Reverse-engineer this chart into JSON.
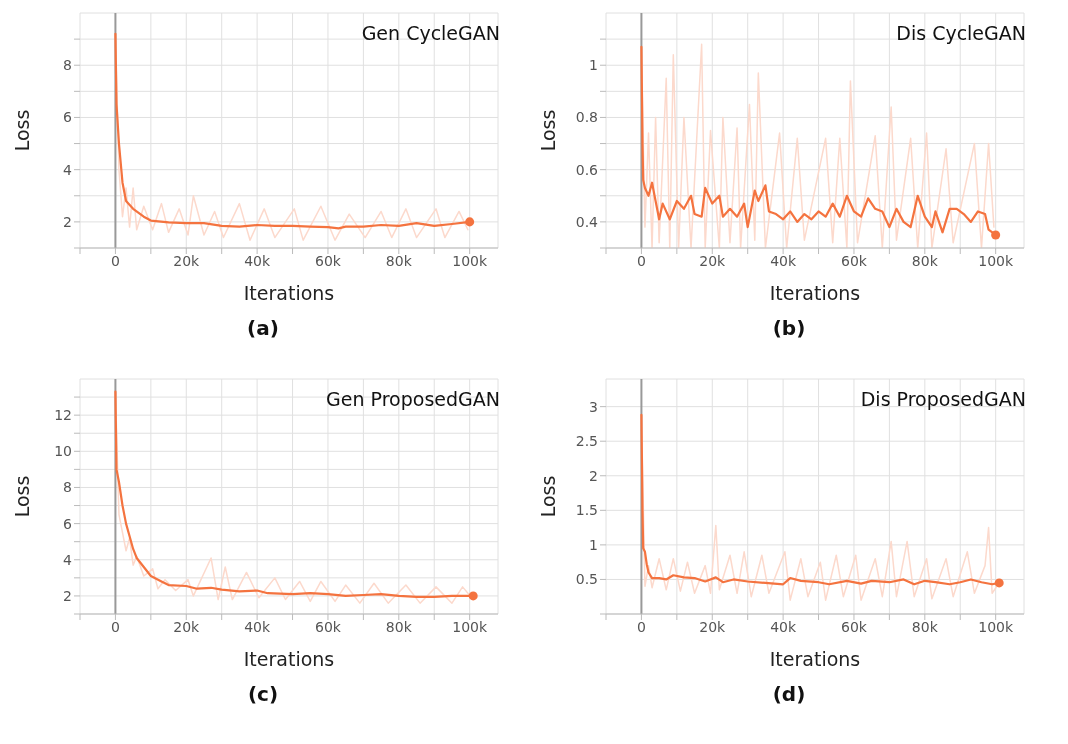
{
  "chart_data": [
    {
      "type": "line",
      "title": "Gen CycleGAN",
      "xlabel": "Iterations",
      "ylabel": "Loss",
      "annotations": [
        "(a)"
      ],
      "grid": true,
      "xlim": [
        -10,
        108
      ],
      "xticks": [
        {
          "value": -10,
          "label": null
        },
        {
          "value": 0,
          "label": "0"
        },
        {
          "value": 10,
          "label": null
        },
        {
          "value": 20,
          "label": "20k"
        },
        {
          "value": 30,
          "label": null
        },
        {
          "value": 40,
          "label": "40k"
        },
        {
          "value": 50,
          "label": null
        },
        {
          "value": 60,
          "label": "60k"
        },
        {
          "value": 70,
          "label": null
        },
        {
          "value": 80,
          "label": "80k"
        },
        {
          "value": 90,
          "label": null
        },
        {
          "value": 100,
          "label": "100k"
        }
      ],
      "ylim": [
        1,
        10
      ],
      "yticks": [
        {
          "value": 1,
          "label": null
        },
        2,
        {
          "value": 3,
          "label": null
        },
        4,
        {
          "value": 5,
          "label": null
        },
        6,
        {
          "value": 7,
          "label": null
        },
        8,
        {
          "value": 9,
          "label": null
        }
      ],
      "ref_lines": [
        {
          "axis": "x",
          "value": 0,
          "color": "#999999"
        }
      ],
      "series": [
        {
          "color": "#fcd9cc",
          "x": [
            0,
            1,
            2,
            3,
            4,
            5,
            6,
            8,
            10.5,
            13,
            15,
            18,
            20.5,
            22,
            25,
            28,
            30.5,
            35,
            38,
            42,
            45,
            50.5,
            53,
            58,
            62,
            66,
            70.5,
            75,
            78,
            82,
            85,
            90.5,
            93,
            97,
            99.5
          ],
          "values": [
            9.2,
            4,
            2.2,
            3.3,
            1.8,
            3.3,
            1.7,
            2.6,
            1.7,
            2.7,
            1.6,
            2.5,
            1.5,
            3.0,
            1.5,
            2.4,
            1.4,
            2.7,
            1.3,
            2.5,
            1.4,
            2.5,
            1.3,
            2.6,
            1.3,
            2.3,
            1.4,
            2.4,
            1.4,
            2.5,
            1.4,
            2.5,
            1.4,
            2.4,
            1.7
          ]
        },
        {
          "color": "#f4733f",
          "x": [
            0,
            0.3,
            1,
            2,
            3,
            5,
            8,
            10,
            15,
            20,
            25,
            30,
            35,
            40,
            45,
            50,
            55,
            60,
            63,
            65,
            70,
            75,
            80,
            85,
            90,
            95,
            100
          ],
          "values": [
            9.2,
            6.5,
            5,
            3.5,
            2.8,
            2.5,
            2.2,
            2.05,
            1.98,
            1.95,
            1.95,
            1.85,
            1.82,
            1.88,
            1.85,
            1.85,
            1.82,
            1.8,
            1.75,
            1.82,
            1.82,
            1.88,
            1.85,
            1.95,
            1.85,
            1.92,
            2.0
          ]
        },
        {
          "type": "scatter",
          "marker": "circle",
          "color": "#f4733f",
          "x": [
            100
          ],
          "values": [
            2.0
          ]
        }
      ]
    },
    {
      "type": "line",
      "title": "Dis CycleGAN",
      "xlabel": "Iterations",
      "ylabel": "Loss",
      "annotations": [
        "(b)"
      ],
      "grid": true,
      "xlim": [
        -10,
        108
      ],
      "xticks": [
        {
          "value": -10,
          "label": null
        },
        {
          "value": 0,
          "label": "0"
        },
        {
          "value": 10,
          "label": null
        },
        {
          "value": 20,
          "label": "20k"
        },
        {
          "value": 30,
          "label": null
        },
        {
          "value": 40,
          "label": "40k"
        },
        {
          "value": 50,
          "label": null
        },
        {
          "value": 60,
          "label": "60k"
        },
        {
          "value": 70,
          "label": null
        },
        {
          "value": 80,
          "label": "80k"
        },
        {
          "value": 90,
          "label": null
        },
        {
          "value": 100,
          "label": "100k"
        }
      ],
      "ylim": [
        0.3,
        1.2
      ],
      "yticks": [
        {
          "value": 0.3,
          "label": null
        },
        0.4,
        {
          "value": 0.5,
          "label": null
        },
        0.6,
        {
          "value": 0.7,
          "label": null
        },
        0.8,
        {
          "value": 0.9,
          "label": null
        },
        1,
        {
          "value": 1.1,
          "label": null
        }
      ],
      "ref_lines": [
        {
          "axis": "x",
          "value": 0,
          "color": "#999999"
        }
      ],
      "series": [
        {
          "color": "#fcd9cc",
          "x": [
            0,
            1,
            2,
            3,
            4,
            5,
            7,
            8,
            9,
            10.5,
            12,
            14,
            17,
            18,
            19.5,
            22,
            23,
            25,
            27,
            28,
            30.5,
            32,
            33,
            35,
            39,
            41,
            44,
            46,
            52,
            54,
            56,
            58,
            59,
            61,
            66,
            68,
            70.5,
            72,
            76,
            78,
            80.5,
            82,
            86,
            88,
            94,
            96,
            98,
            99.5
          ],
          "values": [
            1.07,
            0.38,
            0.74,
            0.3,
            0.8,
            0.32,
            0.95,
            0.3,
            1.04,
            0.3,
            0.8,
            0.3,
            1.08,
            0.3,
            0.75,
            0.3,
            0.8,
            0.32,
            0.76,
            0.3,
            0.85,
            0.33,
            0.97,
            0.3,
            0.74,
            0.3,
            0.72,
            0.33,
            0.72,
            0.32,
            0.72,
            0.3,
            0.94,
            0.32,
            0.73,
            0.3,
            0.84,
            0.33,
            0.72,
            0.3,
            0.74,
            0.3,
            0.68,
            0.32,
            0.7,
            0.3,
            0.7,
            0.38
          ]
        },
        {
          "color": "#f4733f",
          "x": [
            0,
            0.3,
            0.5,
            1,
            2,
            3,
            4,
            5,
            6,
            8,
            10,
            12,
            14,
            15,
            17,
            18,
            20,
            22,
            23,
            25,
            27,
            29,
            30,
            32,
            33,
            35,
            36,
            38,
            40,
            42,
            44,
            46,
            48,
            50,
            52,
            54,
            56,
            58,
            60,
            62,
            64,
            66,
            68,
            70,
            72,
            74,
            76,
            78,
            80,
            82,
            83,
            85,
            87,
            89,
            91,
            93,
            95,
            97,
            98,
            100
          ],
          "values": [
            1.07,
            0.7,
            0.56,
            0.53,
            0.5,
            0.55,
            0.48,
            0.41,
            0.47,
            0.41,
            0.48,
            0.45,
            0.5,
            0.43,
            0.42,
            0.53,
            0.47,
            0.5,
            0.42,
            0.45,
            0.42,
            0.47,
            0.38,
            0.52,
            0.48,
            0.54,
            0.44,
            0.43,
            0.41,
            0.44,
            0.4,
            0.43,
            0.41,
            0.44,
            0.42,
            0.47,
            0.42,
            0.5,
            0.44,
            0.42,
            0.49,
            0.45,
            0.44,
            0.38,
            0.45,
            0.4,
            0.38,
            0.5,
            0.42,
            0.38,
            0.44,
            0.36,
            0.45,
            0.45,
            0.43,
            0.4,
            0.44,
            0.43,
            0.37,
            0.35
          ]
        },
        {
          "type": "scatter",
          "marker": "circle",
          "color": "#f4733f",
          "x": [
            100
          ],
          "values": [
            0.35
          ]
        }
      ]
    },
    {
      "type": "line",
      "title": "Gen ProposedGAN",
      "xlabel": "Iterations",
      "ylabel": "Loss",
      "annotations": [
        "(c)"
      ],
      "grid": true,
      "xlim": [
        -10,
        108
      ],
      "xticks": [
        {
          "value": -10,
          "label": null
        },
        {
          "value": 0,
          "label": "0"
        },
        {
          "value": 10,
          "label": null
        },
        {
          "value": 20,
          "label": "20k"
        },
        {
          "value": 30,
          "label": null
        },
        {
          "value": 40,
          "label": "40k"
        },
        {
          "value": 50,
          "label": null
        },
        {
          "value": 60,
          "label": "60k"
        },
        {
          "value": 70,
          "label": null
        },
        {
          "value": 80,
          "label": "80k"
        },
        {
          "value": 90,
          "label": null
        },
        {
          "value": 100,
          "label": "100k"
        }
      ],
      "ylim": [
        1,
        14
      ],
      "yticks": [
        {
          "value": 1,
          "label": null
        },
        2,
        {
          "value": 3,
          "label": null
        },
        4,
        {
          "value": 5,
          "label": null
        },
        6,
        {
          "value": 7,
          "label": null
        },
        8,
        {
          "value": 9,
          "label": null
        },
        10,
        {
          "value": 11,
          "label": null
        },
        12,
        {
          "value": 13,
          "label": null
        }
      ],
      "ref_lines": [
        {
          "axis": "x",
          "value": 0,
          "color": "#999999"
        }
      ],
      "series": [
        {
          "color": "#fcd9cc",
          "x": [
            0,
            1,
            2,
            3,
            4,
            5,
            6,
            8,
            10.5,
            12,
            14,
            17,
            20.5,
            22,
            27,
            29,
            31,
            33,
            37,
            40.5,
            45,
            48,
            52,
            55,
            58,
            62,
            65,
            69,
            73,
            77,
            82,
            86,
            90.5,
            95,
            98,
            101
          ],
          "values": [
            13.3,
            6.5,
            5.5,
            4.5,
            5.2,
            3.7,
            4.2,
            3.1,
            3.5,
            2.4,
            2.9,
            2.3,
            2.9,
            2.0,
            4.1,
            1.8,
            3.6,
            1.8,
            3.3,
            1.9,
            3.0,
            1.8,
            2.8,
            1.7,
            2.8,
            1.7,
            2.6,
            1.6,
            2.7,
            1.6,
            2.6,
            1.6,
            2.5,
            1.6,
            2.5,
            1.8
          ]
        },
        {
          "color": "#f4733f",
          "x": [
            0,
            0.3,
            1,
            2,
            3,
            4,
            5,
            6,
            8,
            10,
            13,
            15,
            20,
            23,
            27,
            30,
            35,
            40,
            43,
            50,
            55,
            60,
            65,
            70,
            75,
            80,
            85,
            90,
            95,
            101
          ],
          "values": [
            13.3,
            9,
            8.3,
            7,
            6,
            5.3,
            4.6,
            4.1,
            3.6,
            3.1,
            2.8,
            2.6,
            2.55,
            2.4,
            2.45,
            2.35,
            2.25,
            2.3,
            2.15,
            2.1,
            2.15,
            2.1,
            2.0,
            2.05,
            2.1,
            2.0,
            1.95,
            1.95,
            2.0,
            2.0
          ]
        },
        {
          "type": "scatter",
          "marker": "circle",
          "color": "#f4733f",
          "x": [
            101
          ],
          "values": [
            2.0
          ]
        }
      ]
    },
    {
      "type": "line",
      "title": "Dis ProposedGAN",
      "xlabel": "Iterations",
      "ylabel": "Loss",
      "annotations": [
        "(d)"
      ],
      "grid": true,
      "xlim": [
        -10,
        108
      ],
      "xticks": [
        {
          "value": -10,
          "label": null
        },
        {
          "value": 0,
          "label": "0"
        },
        {
          "value": 10,
          "label": null
        },
        {
          "value": 20,
          "label": "20k"
        },
        {
          "value": 30,
          "label": null
        },
        {
          "value": 40,
          "label": "40k"
        },
        {
          "value": 50,
          "label": null
        },
        {
          "value": 60,
          "label": "60k"
        },
        {
          "value": 70,
          "label": null
        },
        {
          "value": 80,
          "label": "80k"
        },
        {
          "value": 90,
          "label": null
        },
        {
          "value": 100,
          "label": "100k"
        }
      ],
      "ylim": [
        0,
        3.4
      ],
      "yticks": [
        {
          "value": 0,
          "label": null
        },
        0.5,
        1,
        1.5,
        2,
        2.5,
        3
      ],
      "ref_lines": [
        {
          "axis": "x",
          "value": 0,
          "color": "#999999"
        }
      ],
      "series": [
        {
          "color": "#fcd9cc",
          "x": [
            0,
            1,
            2,
            3,
            5,
            7,
            9,
            11,
            13,
            15,
            18,
            19.5,
            21,
            22,
            25,
            27,
            29,
            31,
            34,
            36,
            40.5,
            42,
            45,
            47,
            50.5,
            52,
            55,
            57,
            60.5,
            62,
            66,
            68,
            70.5,
            72,
            75,
            77,
            80.5,
            82,
            86,
            88,
            92,
            94,
            97,
            98,
            99,
            101
          ],
          "values": [
            2.88,
            0.4,
            0.7,
            0.38,
            0.8,
            0.35,
            0.8,
            0.33,
            0.75,
            0.3,
            0.7,
            0.3,
            1.28,
            0.35,
            0.85,
            0.3,
            0.9,
            0.25,
            0.85,
            0.3,
            0.9,
            0.2,
            0.8,
            0.25,
            0.75,
            0.2,
            0.85,
            0.25,
            0.85,
            0.2,
            0.8,
            0.25,
            1.05,
            0.25,
            1.05,
            0.25,
            0.8,
            0.22,
            0.8,
            0.25,
            0.9,
            0.3,
            0.7,
            1.25,
            0.3,
            0.45
          ]
        },
        {
          "color": "#f4733f",
          "x": [
            0,
            0.3,
            0.5,
            1,
            1.5,
            2,
            3,
            5,
            7,
            9,
            12,
            15,
            18,
            21,
            23,
            26,
            30,
            35,
            40,
            42,
            45,
            50,
            53,
            58,
            62,
            65,
            70,
            74,
            77,
            80,
            83,
            87,
            90,
            93,
            96,
            99,
            101
          ],
          "values": [
            2.88,
            1.5,
            0.95,
            0.9,
            0.72,
            0.6,
            0.52,
            0.52,
            0.5,
            0.56,
            0.53,
            0.52,
            0.47,
            0.53,
            0.46,
            0.5,
            0.47,
            0.45,
            0.43,
            0.52,
            0.48,
            0.46,
            0.43,
            0.48,
            0.44,
            0.48,
            0.46,
            0.5,
            0.43,
            0.48,
            0.46,
            0.43,
            0.46,
            0.5,
            0.46,
            0.43,
            0.45
          ]
        },
        {
          "type": "scatter",
          "marker": "circle",
          "color": "#f4733f",
          "x": [
            101
          ],
          "values": [
            0.45
          ]
        }
      ]
    }
  ]
}
